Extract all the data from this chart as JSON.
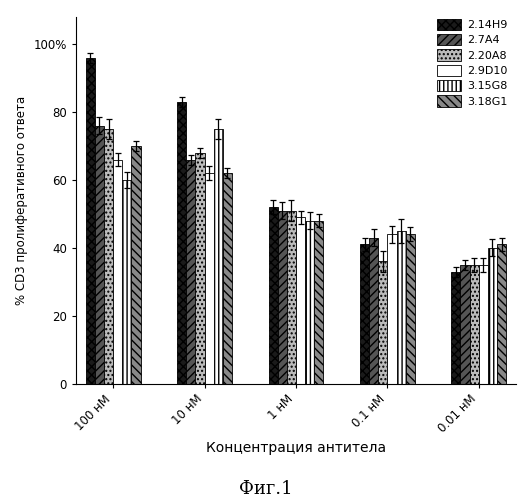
{
  "categories": [
    "100 нМ",
    "10 нМ",
    "1 нМ",
    "0.1 нМ",
    "0.01 нМ"
  ],
  "series": [
    {
      "label": "2.14H9",
      "values": [
        96,
        83,
        52,
        41,
        33
      ],
      "errors": [
        1.5,
        1.5,
        2.0,
        2.0,
        1.5
      ],
      "hatch": "xxxx",
      "facecolor": "#1a1a1a",
      "edgecolor": "#000000"
    },
    {
      "label": "2.7A4",
      "values": [
        76,
        66,
        51,
        43,
        35
      ],
      "errors": [
        2.5,
        1.5,
        2.5,
        2.5,
        1.5
      ],
      "hatch": "////",
      "facecolor": "#555555",
      "edgecolor": "#000000"
    },
    {
      "label": "2.20A8",
      "values": [
        75,
        68,
        51,
        36,
        35
      ],
      "errors": [
        3.0,
        1.5,
        3.0,
        3.0,
        2.0
      ],
      "hatch": "....",
      "facecolor": "#bbbbbb",
      "edgecolor": "#000000"
    },
    {
      "label": "2.9D10",
      "values": [
        66,
        62,
        49,
        44,
        35
      ],
      "errors": [
        2.0,
        2.0,
        2.0,
        2.5,
        2.0
      ],
      "hatch": "====",
      "facecolor": "#ffffff",
      "edgecolor": "#000000"
    },
    {
      "label": "3.15G8",
      "values": [
        60,
        75,
        48,
        45,
        40
      ],
      "errors": [
        2.5,
        3.0,
        2.5,
        3.5,
        2.5
      ],
      "hatch": "||||",
      "facecolor": "#ffffff",
      "edgecolor": "#000000"
    },
    {
      "label": "3.18G1",
      "values": [
        70,
        62,
        48,
        44,
        41
      ],
      "errors": [
        1.5,
        1.5,
        2.0,
        2.0,
        2.0
      ],
      "hatch": "\\\\\\\\",
      "facecolor": "#888888",
      "edgecolor": "#000000"
    }
  ],
  "ylabel": "% CD3 пролиферативного ответа",
  "xlabel": "Концентрация антитела",
  "title": "Фиг.1",
  "ylim": [
    0,
    108
  ],
  "ytick_vals": [
    0,
    20,
    40,
    60,
    80,
    100
  ],
  "ytick_labels": [
    "0",
    "20",
    "40",
    "60",
    "80",
    "100%"
  ],
  "bar_width": 0.135,
  "group_positions": [
    0.5,
    1.85,
    3.2,
    4.55,
    5.9
  ],
  "background_color": "#ffffff"
}
